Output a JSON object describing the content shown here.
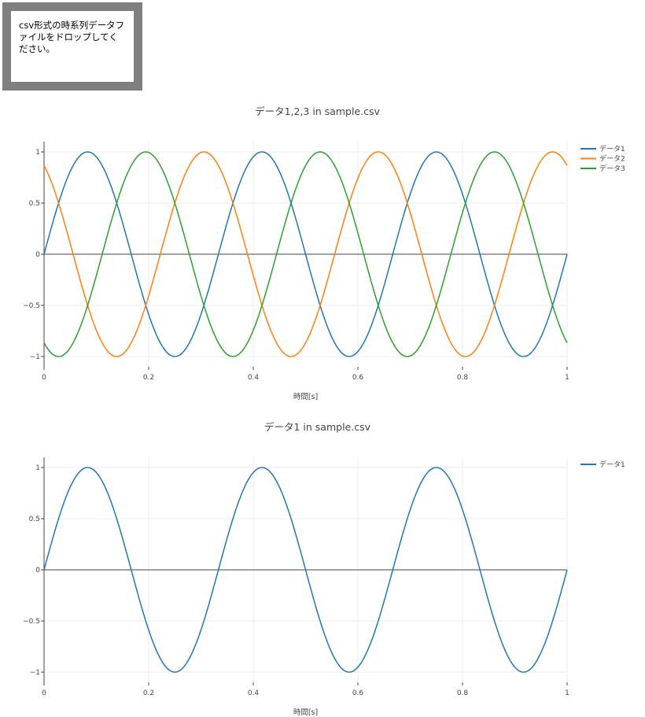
{
  "dropzone": {
    "message": "csv形式の時系列データファイルをドロップしてください。"
  },
  "chart_data": [
    {
      "type": "line",
      "title": "データ1,2,3 in sample.csv",
      "xlabel": "時間[s]",
      "ylabel": "",
      "xlim": [
        0,
        1
      ],
      "ylim": [
        -1.1,
        1.1
      ],
      "xticks": [
        0,
        0.2,
        0.4,
        0.6,
        0.8,
        1
      ],
      "xtick_labels": [
        "0",
        "0.2",
        "0.4",
        "0.6",
        "0.8",
        "1"
      ],
      "yticks": [
        1,
        0.5,
        0,
        -0.5,
        -1
      ],
      "ytick_labels": [
        "1",
        "0.5",
        "0",
        "−0.5",
        "−1"
      ],
      "grid": true,
      "legend_position": "top-right",
      "frequency_hz": 3,
      "series": [
        {
          "name": "データ1",
          "function": "sin(2π·3·t)",
          "phase_deg": 0,
          "color": "#1f77b4"
        },
        {
          "name": "データ2",
          "function": "sin(2π·3·t + 120°)",
          "phase_deg": 120,
          "color": "#ff7f0e"
        },
        {
          "name": "データ3",
          "function": "sin(2π·3·t + 240°)",
          "phase_deg": 240,
          "color": "#2ca02c"
        }
      ]
    },
    {
      "type": "line",
      "title": "データ1 in sample.csv",
      "xlabel": "時間[s]",
      "ylabel": "",
      "xlim": [
        0,
        1
      ],
      "ylim": [
        -1.1,
        1.1
      ],
      "xticks": [
        0,
        0.2,
        0.4,
        0.6,
        0.8,
        1
      ],
      "xtick_labels": [
        "0",
        "0.2",
        "0.4",
        "0.6",
        "0.8",
        "1"
      ],
      "yticks": [
        1,
        0.5,
        0,
        -0.5,
        -1
      ],
      "ytick_labels": [
        "1",
        "0.5",
        "0",
        "−0.5",
        "−1"
      ],
      "grid": true,
      "legend_position": "top-right",
      "frequency_hz": 3,
      "series": [
        {
          "name": "データ1",
          "function": "sin(2π·3·t)",
          "phase_deg": 0,
          "color": "#1f77b4"
        }
      ]
    }
  ]
}
